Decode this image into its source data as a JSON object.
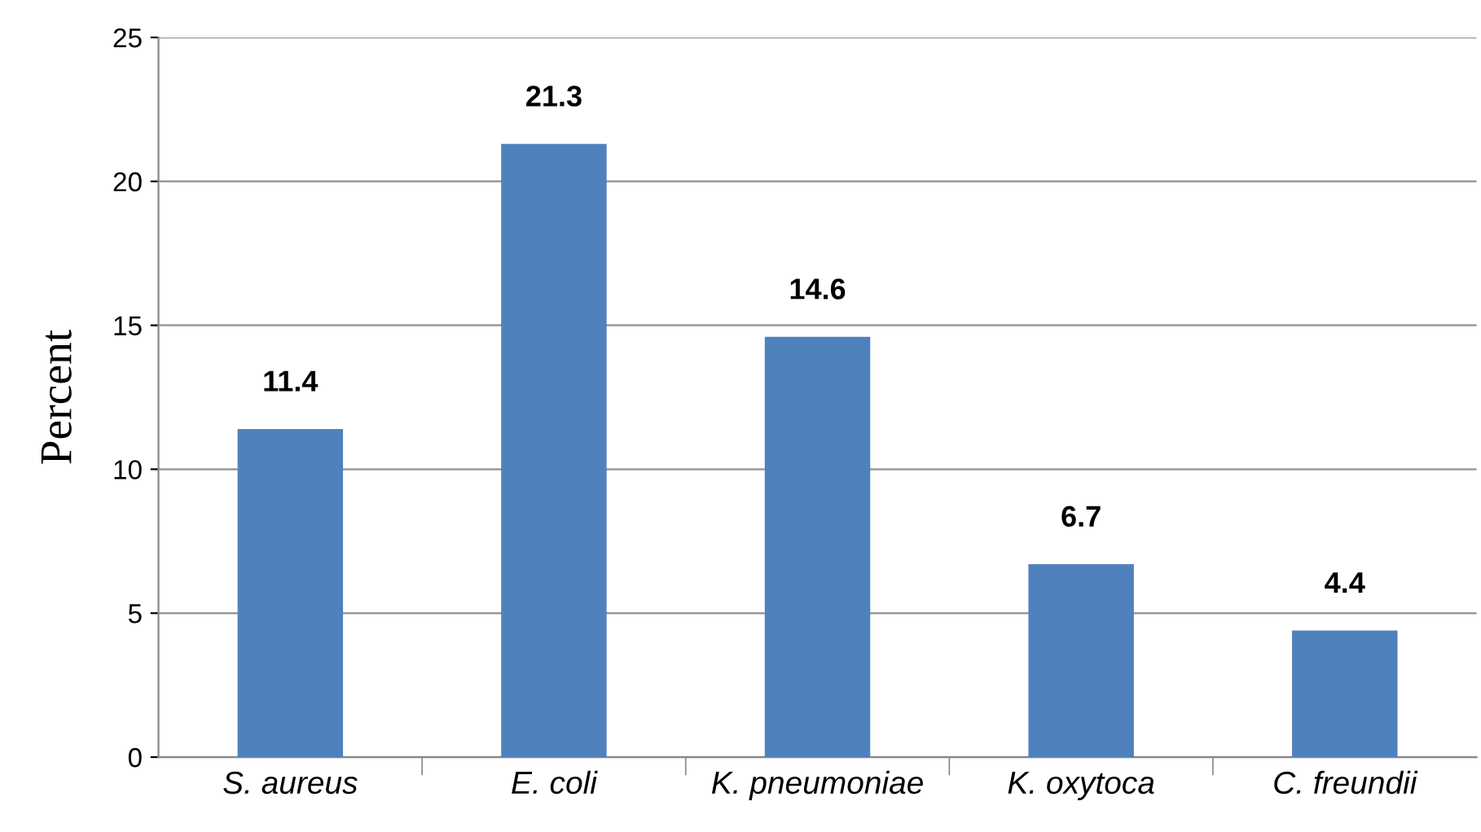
{
  "chart_data": {
    "type": "bar",
    "ylabel": "Percent",
    "categories": [
      "S. aureus",
      "E. coli",
      "K. pneumoniae",
      "K. oxytoca",
      "C. freundii"
    ],
    "values": [
      11.4,
      21.3,
      14.6,
      6.7,
      4.4
    ],
    "color": "#4f81bd",
    "ylim": [
      0,
      25
    ],
    "yticks": [
      0,
      5,
      10,
      15,
      20,
      25
    ],
    "grid": "y",
    "data_labels": true
  }
}
